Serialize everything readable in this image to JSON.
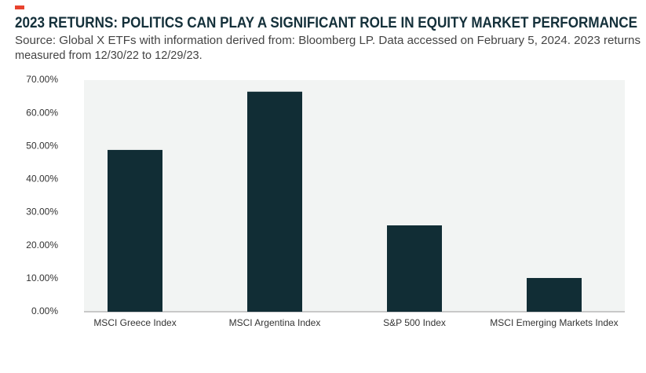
{
  "chart_data": {
    "type": "bar",
    "title": "2023 RETURNS: POLITICS CAN PLAY A SIGNIFICANT ROLE IN EQUITY MARKET PERFORMANCE",
    "subtitle": [
      "Source: Global X ETFs with information derived from: Bloomberg LP. Data accessed on February 5, 2024. 2023 returns",
      "measured from 12/30/22 to 12/29/23."
    ],
    "categories": [
      "MSCI Greece Index",
      "MSCI Argentina Index",
      "S&P 500 Index",
      "MSCI Emerging Markets Index"
    ],
    "values": [
      48.9,
      66.5,
      26.1,
      10.2
    ],
    "color": "#112d35",
    "ylim": [
      0,
      70
    ],
    "yticks": [
      {
        "value": 0,
        "label": "0.00%"
      },
      {
        "value": 10,
        "label": "10.00%"
      },
      {
        "value": 20,
        "label": "20.00%"
      },
      {
        "value": 30,
        "label": "30.00%"
      },
      {
        "value": 40,
        "label": "40.00%"
      },
      {
        "value": 50,
        "label": "50.00%"
      },
      {
        "value": 60,
        "label": "60.00%"
      },
      {
        "value": 70,
        "label": "70.00%"
      }
    ],
    "grid": false
  }
}
